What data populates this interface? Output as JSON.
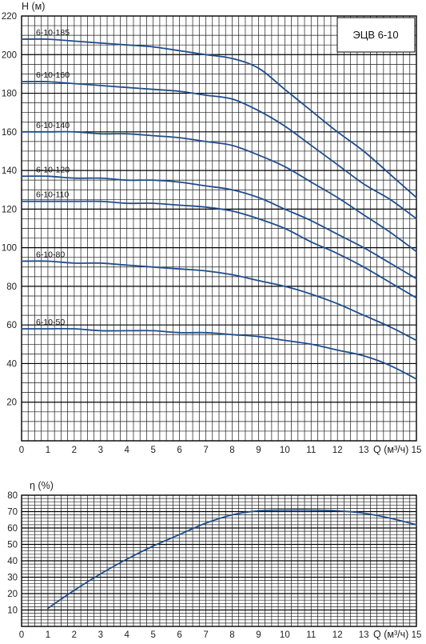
{
  "curve_color": "#1f4e8c",
  "chart_data": [
    {
      "type": "line",
      "title": "ЭЦВ 6-10",
      "ylabel": "H (м)",
      "xlabel": "Q (м³/ч)",
      "xlim": [
        0,
        15
      ],
      "ylim": [
        0,
        220
      ],
      "x_ticks": [
        "0",
        "1",
        "2",
        "3",
        "4",
        "5",
        "6",
        "7",
        "8",
        "9",
        "10",
        "11",
        "12",
        "13",
        "15"
      ],
      "y_ticks": [
        "20",
        "40",
        "60",
        "80",
        "100",
        "120",
        "140",
        "160",
        "180",
        "200",
        "220"
      ],
      "series": [
        {
          "name": "6-10-185",
          "x": [
            0,
            1,
            2,
            3,
            4,
            5,
            6,
            7,
            8,
            9,
            10,
            11,
            12,
            13,
            14,
            15
          ],
          "y": [
            208,
            208,
            207,
            206,
            205,
            204,
            202,
            200,
            198,
            193,
            182,
            171,
            160,
            150,
            138,
            126
          ]
        },
        {
          "name": "6-10-160",
          "x": [
            0,
            1,
            2,
            3,
            4,
            5,
            6,
            7,
            8,
            9,
            10,
            11,
            12,
            13,
            14,
            15
          ],
          "y": [
            186,
            186,
            185,
            184,
            183,
            182,
            181,
            179,
            177,
            171,
            163,
            153,
            143,
            133,
            125,
            115
          ]
        },
        {
          "name": "6-10-140",
          "x": [
            0,
            1,
            2,
            3,
            4,
            5,
            6,
            7,
            8,
            9,
            10,
            11,
            12,
            13,
            14,
            15
          ],
          "y": [
            160,
            160,
            160,
            159,
            159,
            158,
            157,
            155,
            153,
            148,
            142,
            134,
            126,
            117,
            108,
            98
          ]
        },
        {
          "name": "6-10-120",
          "x": [
            0,
            1,
            2,
            3,
            4,
            5,
            6,
            7,
            8,
            9,
            10,
            11,
            12,
            13,
            14,
            15
          ],
          "y": [
            137,
            137,
            136,
            136,
            135,
            135,
            134,
            132,
            130,
            126,
            120,
            114,
            107,
            100,
            92,
            84
          ]
        },
        {
          "name": "6-10-110",
          "x": [
            0,
            1,
            2,
            3,
            4,
            5,
            6,
            7,
            8,
            9,
            10,
            11,
            12,
            13,
            14,
            15
          ],
          "y": [
            124,
            124,
            124,
            124,
            123,
            123,
            122,
            121,
            119,
            115,
            110,
            103,
            97,
            90,
            82,
            74
          ]
        },
        {
          "name": "6-10-80",
          "x": [
            0,
            1,
            2,
            3,
            4,
            5,
            6,
            7,
            8,
            9,
            10,
            11,
            12,
            13,
            14,
            15
          ],
          "y": [
            93,
            93,
            92,
            92,
            91,
            90,
            89,
            88,
            86,
            83,
            80,
            76,
            71,
            65,
            59,
            52
          ]
        },
        {
          "name": "6-10-50",
          "x": [
            0,
            1,
            2,
            3,
            4,
            5,
            6,
            7,
            8,
            9,
            10,
            11,
            12,
            13,
            14,
            15
          ],
          "y": [
            58,
            58,
            58,
            57,
            57,
            57,
            56,
            56,
            55,
            54,
            52,
            50,
            47,
            44,
            39,
            32
          ]
        }
      ]
    },
    {
      "type": "line",
      "title": "",
      "ylabel": "η (%)",
      "xlabel": "Q (м³/ч)",
      "xlim": [
        0,
        15
      ],
      "ylim": [
        0,
        80
      ],
      "x_ticks": [
        "0",
        "1",
        "2",
        "3",
        "4",
        "5",
        "6",
        "7",
        "8",
        "9",
        "10",
        "11",
        "12",
        "13",
        "15"
      ],
      "y_ticks": [
        "10",
        "20",
        "30",
        "40",
        "50",
        "60",
        "70",
        "80"
      ],
      "series": [
        {
          "x": [
            1,
            2,
            3,
            4,
            5,
            6,
            7,
            8,
            9,
            10,
            11,
            12,
            13,
            14,
            15
          ],
          "y": [
            11,
            22,
            32,
            41,
            49,
            56,
            63,
            68,
            70.5,
            71,
            71,
            70.5,
            69,
            66,
            62
          ]
        }
      ]
    }
  ]
}
